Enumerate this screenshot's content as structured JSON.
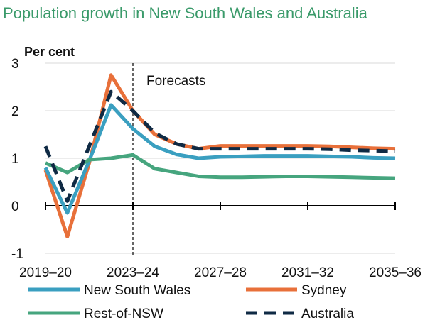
{
  "chart_data": {
    "type": "line",
    "title": "Population growth in New South Wales and Australia",
    "ylabel": "Per cent",
    "ylim": [
      -1,
      3
    ],
    "yticks": [
      "-1",
      "0",
      "1",
      "2",
      "3"
    ],
    "x": [
      "2019–20",
      "2020–21",
      "2021–22",
      "2022–23",
      "2023–24",
      "2024–25",
      "2025–26",
      "2026–27",
      "2027–28",
      "2028–29",
      "2029–30",
      "2030–31",
      "2031–32",
      "2032–33",
      "2033–34",
      "2034–35",
      "2035–36"
    ],
    "xtick_labels": [
      "2019–20",
      "2023–24",
      "2027–28",
      "2031–32",
      "2035–36"
    ],
    "annotation": "Forecasts",
    "forecast_start": "2023–24",
    "grid": true,
    "legend_placement": "bottom",
    "series": [
      {
        "name": "New South Wales",
        "color": "#3a9fc0",
        "dash": false,
        "values": [
          0.8,
          -0.15,
          0.95,
          2.12,
          1.62,
          1.25,
          1.08,
          1.0,
          1.03,
          1.04,
          1.05,
          1.05,
          1.05,
          1.04,
          1.03,
          1.01,
          1.0
        ]
      },
      {
        "name": "Sydney",
        "color": "#e8703a",
        "dash": false,
        "values": [
          0.75,
          -0.65,
          0.9,
          2.75,
          2.0,
          1.5,
          1.3,
          1.2,
          1.26,
          1.26,
          1.26,
          1.26,
          1.26,
          1.25,
          1.23,
          1.21,
          1.2
        ]
      },
      {
        "name": "Rest-of-NSW",
        "color": "#46a57e",
        "dash": false,
        "values": [
          0.9,
          0.7,
          0.97,
          1.0,
          1.07,
          0.78,
          0.7,
          0.62,
          0.6,
          0.6,
          0.61,
          0.62,
          0.62,
          0.61,
          0.6,
          0.59,
          0.58
        ]
      },
      {
        "name": "Australia",
        "color": "#0f2a44",
        "dash": true,
        "values": [
          1.25,
          0.1,
          1.25,
          2.4,
          2.0,
          1.53,
          1.3,
          1.2,
          1.2,
          1.2,
          1.2,
          1.2,
          1.2,
          1.19,
          1.17,
          1.16,
          1.15
        ]
      }
    ]
  }
}
